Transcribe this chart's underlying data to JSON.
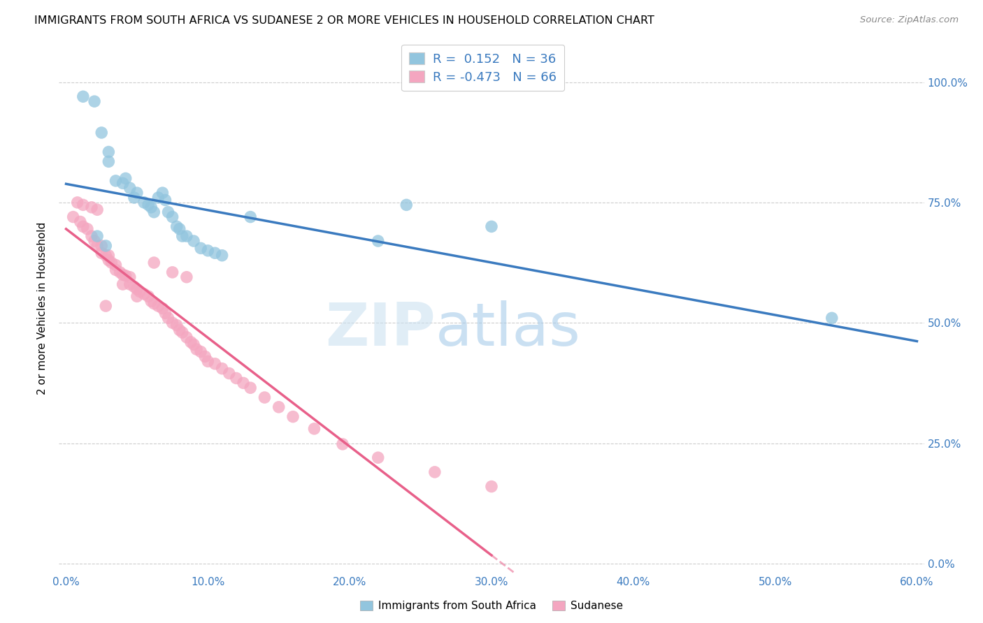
{
  "title": "IMMIGRANTS FROM SOUTH AFRICA VS SUDANESE 2 OR MORE VEHICLES IN HOUSEHOLD CORRELATION CHART",
  "source": "Source: ZipAtlas.com",
  "ylabel": "2 or more Vehicles in Household",
  "x_tick_labels": [
    "0.0%",
    "10.0%",
    "20.0%",
    "30.0%",
    "40.0%",
    "50.0%",
    "60.0%"
  ],
  "x_tick_values": [
    0.0,
    0.1,
    0.2,
    0.3,
    0.4,
    0.5,
    0.6
  ],
  "y_tick_labels": [
    "0.0%",
    "25.0%",
    "50.0%",
    "75.0%",
    "100.0%"
  ],
  "y_tick_values": [
    0.0,
    0.25,
    0.5,
    0.75,
    1.0
  ],
  "xlim": [
    -0.005,
    0.605
  ],
  "ylim": [
    -0.02,
    1.08
  ],
  "legend_r_blue": " 0.152",
  "legend_n_blue": "36",
  "legend_r_pink": "-0.473",
  "legend_n_pink": "66",
  "blue_color": "#92c5de",
  "pink_color": "#f4a6c0",
  "line_blue": "#3a7abf",
  "line_pink": "#e8608a",
  "watermark_zip": "ZIP",
  "watermark_atlas": "atlas",
  "blue_scatter_x": [
    0.012,
    0.02,
    0.025,
    0.03,
    0.03,
    0.035,
    0.04,
    0.042,
    0.045,
    0.048,
    0.05,
    0.055,
    0.058,
    0.06,
    0.062,
    0.065,
    0.068,
    0.07,
    0.072,
    0.075,
    0.078,
    0.08,
    0.082,
    0.085,
    0.09,
    0.095,
    0.1,
    0.105,
    0.11,
    0.13,
    0.22,
    0.24,
    0.3,
    0.54,
    0.022,
    0.028
  ],
  "blue_scatter_y": [
    0.97,
    0.96,
    0.895,
    0.855,
    0.835,
    0.795,
    0.79,
    0.8,
    0.78,
    0.76,
    0.77,
    0.75,
    0.745,
    0.74,
    0.73,
    0.76,
    0.77,
    0.755,
    0.73,
    0.72,
    0.7,
    0.695,
    0.68,
    0.68,
    0.67,
    0.655,
    0.65,
    0.645,
    0.64,
    0.72,
    0.67,
    0.745,
    0.7,
    0.51,
    0.68,
    0.66
  ],
  "pink_scatter_x": [
    0.005,
    0.01,
    0.012,
    0.015,
    0.018,
    0.02,
    0.022,
    0.025,
    0.025,
    0.028,
    0.03,
    0.03,
    0.032,
    0.035,
    0.035,
    0.038,
    0.04,
    0.042,
    0.045,
    0.045,
    0.048,
    0.05,
    0.052,
    0.055,
    0.058,
    0.06,
    0.062,
    0.065,
    0.068,
    0.07,
    0.072,
    0.075,
    0.078,
    0.08,
    0.082,
    0.085,
    0.088,
    0.09,
    0.092,
    0.095,
    0.098,
    0.1,
    0.105,
    0.11,
    0.115,
    0.12,
    0.125,
    0.13,
    0.14,
    0.15,
    0.16,
    0.175,
    0.195,
    0.22,
    0.26,
    0.3,
    0.008,
    0.012,
    0.018,
    0.022,
    0.04,
    0.05,
    0.028,
    0.062,
    0.075,
    0.085
  ],
  "pink_scatter_y": [
    0.72,
    0.71,
    0.7,
    0.695,
    0.68,
    0.67,
    0.66,
    0.66,
    0.645,
    0.64,
    0.64,
    0.63,
    0.625,
    0.62,
    0.61,
    0.605,
    0.6,
    0.598,
    0.595,
    0.58,
    0.575,
    0.57,
    0.565,
    0.56,
    0.555,
    0.545,
    0.54,
    0.535,
    0.53,
    0.52,
    0.51,
    0.5,
    0.495,
    0.485,
    0.48,
    0.47,
    0.46,
    0.455,
    0.445,
    0.44,
    0.43,
    0.42,
    0.415,
    0.405,
    0.395,
    0.385,
    0.375,
    0.365,
    0.345,
    0.325,
    0.305,
    0.28,
    0.248,
    0.22,
    0.19,
    0.16,
    0.75,
    0.745,
    0.74,
    0.735,
    0.58,
    0.555,
    0.535,
    0.625,
    0.605,
    0.595
  ]
}
